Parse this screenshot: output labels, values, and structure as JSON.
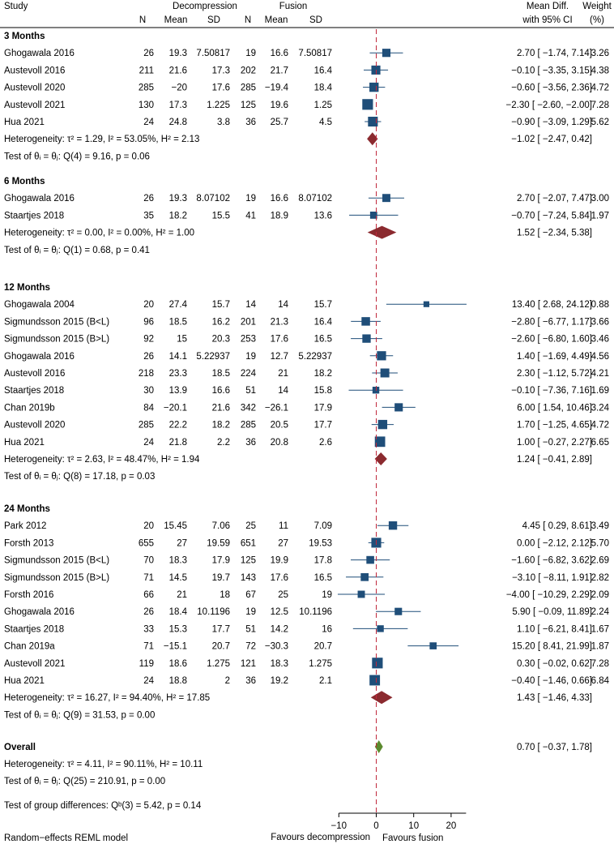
{
  "chart_data": {
    "type": "forest",
    "model_note": "Random−effects REML model",
    "header": {
      "study": "Study",
      "group1": "Decompression",
      "group2": "Fusion",
      "n": "N",
      "mean": "Mean",
      "sd": "SD",
      "effect_line1": "Mean Diff.",
      "effect_line2": "with 95% CI",
      "weight_line1": "Weight",
      "weight_line2": "(%)"
    },
    "x_axis": {
      "range": [
        -10,
        24
      ],
      "ticks": [
        -10,
        0,
        10,
        20
      ],
      "tick_labels": [
        "−10",
        "0",
        "10",
        "20"
      ],
      "reference_line": 0,
      "left_label": "Favours decompression",
      "right_label": "Favours fusion"
    },
    "colors": {
      "study_marker": "#1f4e79",
      "subgroup_diamond": "#8b2a2f",
      "overall_diamond": "#5b8a2e",
      "reference_line": "#c0283c"
    },
    "groups": [
      {
        "label": "3 Months",
        "studies": [
          {
            "name": "Ghogawala 2016",
            "n1": "26",
            "m1": "19.3",
            "sd1": "7.50817",
            "n2": "19",
            "m2": "16.6",
            "sd2": "7.50817",
            "md": 2.7,
            "lo": -1.74,
            "hi": 7.14,
            "weight": 3.26,
            "ci": "2.70 [  −1.74,  7.14]",
            "w": "3.26"
          },
          {
            "name": "Austevoll 2016",
            "n1": "211",
            "m1": "21.6",
            "sd1": "17.3",
            "n2": "202",
            "m2": "21.7",
            "sd2": "16.4",
            "md": -0.1,
            "lo": -3.35,
            "hi": 3.15,
            "weight": 4.38,
            "ci": "−0.10 [  −3.35,  3.15]",
            "w": "4.38"
          },
          {
            "name": "Austevoll 2020",
            "n1": "285",
            "m1": "−20",
            "sd1": "17.6",
            "n2": "285",
            "m2": "−19.4",
            "sd2": "18.4",
            "md": -0.6,
            "lo": -3.56,
            "hi": 2.36,
            "weight": 4.72,
            "ci": "−0.60 [  −3.56,  2.36]",
            "w": "4.72"
          },
          {
            "name": "Austevoll 2021",
            "n1": "130",
            "m1": "17.3",
            "sd1": "1.225",
            "n2": "125",
            "m2": "19.6",
            "sd2": "1.25",
            "md": -2.3,
            "lo": -2.6,
            "hi": -2.0,
            "weight": 7.28,
            "ci": "−2.30 [  −2.60,  −2.00]",
            "w": "7.28"
          },
          {
            "name": "Hua 2021",
            "n1": "24",
            "m1": "24.8",
            "sd1": "3.8",
            "n2": "36",
            "m2": "25.7",
            "sd2": "4.5",
            "md": -0.9,
            "lo": -3.09,
            "hi": 1.29,
            "weight": 5.62,
            "ci": "−0.90 [  −3.09,  1.29]",
            "w": "5.62"
          }
        ],
        "heterogeneity": {
          "text": "Heterogeneity: τ² = 1.29, I² = 53.05%, H² = 2.13",
          "md": -1.02,
          "lo": -2.47,
          "hi": 0.42,
          "ci": "−1.02 [  −2.47,  0.42]"
        },
        "test": "Test of θᵢ = θⱼ: Q(4) = 9.16, p = 0.06"
      },
      {
        "label": "6 Months",
        "studies": [
          {
            "name": "Ghogawala 2016",
            "n1": "26",
            "m1": "19.3",
            "sd1": "8.07102",
            "n2": "19",
            "m2": "16.6",
            "sd2": "8.07102",
            "md": 2.7,
            "lo": -2.07,
            "hi": 7.47,
            "weight": 3.0,
            "ci": "2.70 [  −2.07,  7.47]",
            "w": "3.00"
          },
          {
            "name": "Staartjes 2018",
            "n1": "35",
            "m1": "18.2",
            "sd1": "15.5",
            "n2": "41",
            "m2": "18.9",
            "sd2": "13.6",
            "md": -0.7,
            "lo": -7.24,
            "hi": 5.84,
            "weight": 1.97,
            "ci": "−0.70 [  −7.24,  5.84]",
            "w": "1.97"
          }
        ],
        "heterogeneity": {
          "text": "Heterogeneity: τ² = 0.00, I² = 0.00%, H² = 1.00",
          "md": 1.52,
          "lo": -2.34,
          "hi": 5.38,
          "ci": "1.52 [  −2.34,  5.38]"
        },
        "test": "Test of θᵢ = θⱼ: Q(1) = 0.68, p = 0.41"
      },
      {
        "label": "12 Months",
        "studies": [
          {
            "name": "Ghogawala 2004",
            "n1": "20",
            "m1": "27.4",
            "sd1": "15.7",
            "n2": "14",
            "m2": "14",
            "sd2": "15.7",
            "md": 13.4,
            "lo": 2.68,
            "hi": 24.12,
            "weight": 0.88,
            "ci": "13.40 [  2.68,  24.12]",
            "w": "0.88"
          },
          {
            "name": "Sigmundsson 2015 (B<L)",
            "n1": "96",
            "m1": "18.5",
            "sd1": "16.2",
            "n2": "201",
            "m2": "21.3",
            "sd2": "16.4",
            "md": -2.8,
            "lo": -6.77,
            "hi": 1.17,
            "weight": 3.66,
            "ci": "−2.80 [  −6.77,  1.17]",
            "w": "3.66"
          },
          {
            "name": "Sigmundsson 2015 (B>L)",
            "n1": "92",
            "m1": "15",
            "sd1": "20.3",
            "n2": "253",
            "m2": "17.6",
            "sd2": "16.5",
            "md": -2.6,
            "lo": -6.8,
            "hi": 1.6,
            "weight": 3.46,
            "ci": "−2.60 [  −6.80,  1.60]",
            "w": "3.46"
          },
          {
            "name": "Ghogawala 2016",
            "n1": "26",
            "m1": "14.1",
            "sd1": "5.22937",
            "n2": "19",
            "m2": "12.7",
            "sd2": "5.22937",
            "md": 1.4,
            "lo": -1.69,
            "hi": 4.49,
            "weight": 4.56,
            "ci": "1.40 [  −1.69,  4.49]",
            "w": "4.56"
          },
          {
            "name": "Austevoll 2016",
            "n1": "218",
            "m1": "23.3",
            "sd1": "18.5",
            "n2": "224",
            "m2": "21",
            "sd2": "18.2",
            "md": 2.3,
            "lo": -1.12,
            "hi": 5.72,
            "weight": 4.21,
            "ci": "2.30 [  −1.12,  5.72]",
            "w": "4.21"
          },
          {
            "name": "Staartjes 2018",
            "n1": "30",
            "m1": "13.9",
            "sd1": "16.6",
            "n2": "51",
            "m2": "14",
            "sd2": "15.8",
            "md": -0.1,
            "lo": -7.36,
            "hi": 7.16,
            "weight": 1.69,
            "ci": "−0.10 [  −7.36,  7.16]",
            "w": "1.69"
          },
          {
            "name": "Chan 2019b",
            "n1": "84",
            "m1": "−20.1",
            "sd1": "21.6",
            "n2": "342",
            "m2": "−26.1",
            "sd2": "17.9",
            "md": 6.0,
            "lo": 1.54,
            "hi": 10.46,
            "weight": 3.24,
            "ci": "6.00 [  1.54,  10.46]",
            "w": "3.24"
          },
          {
            "name": "Austevoll 2020",
            "n1": "285",
            "m1": "22.2",
            "sd1": "18.2",
            "n2": "285",
            "m2": "20.5",
            "sd2": "17.7",
            "md": 1.7,
            "lo": -1.25,
            "hi": 4.65,
            "weight": 4.72,
            "ci": "1.70 [  −1.25,  4.65]",
            "w": "4.72"
          },
          {
            "name": "Hua 2021",
            "n1": "24",
            "m1": "21.8",
            "sd1": "2.2",
            "n2": "36",
            "m2": "20.8",
            "sd2": "2.6",
            "md": 1.0,
            "lo": -0.27,
            "hi": 2.27,
            "weight": 6.65,
            "ci": "1.00 [  −0.27,  2.27]",
            "w": "6.65"
          }
        ],
        "heterogeneity": {
          "text": "Heterogeneity: τ² = 2.63, I² = 48.47%, H² = 1.94",
          "md": 1.24,
          "lo": -0.41,
          "hi": 2.89,
          "ci": "1.24 [  −0.41,  2.89]"
        },
        "test": "Test of θᵢ = θⱼ: Q(8) = 17.18, p = 0.03"
      },
      {
        "label": "24 Months",
        "studies": [
          {
            "name": "Park 2012",
            "n1": "20",
            "m1": "15.45",
            "sd1": "7.06",
            "n2": "25",
            "m2": "11",
            "sd2": "7.09",
            "md": 4.45,
            "lo": 0.29,
            "hi": 8.61,
            "weight": 3.49,
            "ci": "4.45 [  0.29,  8.61]",
            "w": "3.49"
          },
          {
            "name": "Forsth 2013",
            "n1": "655",
            "m1": "27",
            "sd1": "19.59",
            "n2": "651",
            "m2": "27",
            "sd2": "19.53",
            "md": 0.0,
            "lo": -2.12,
            "hi": 2.12,
            "weight": 5.7,
            "ci": "0.00 [  −2.12,  2.12]",
            "w": "5.70"
          },
          {
            "name": "Sigmundsson 2015 (B<L)",
            "n1": "70",
            "m1": "18.3",
            "sd1": "17.9",
            "n2": "125",
            "m2": "19.9",
            "sd2": "17.8",
            "md": -1.6,
            "lo": -6.82,
            "hi": 3.62,
            "weight": 2.69,
            "ci": "−1.60 [  −6.82,  3.62]",
            "w": "2.69"
          },
          {
            "name": "Sigmundsson 2015 (B>L)",
            "n1": "71",
            "m1": "14.5",
            "sd1": "19.7",
            "n2": "143",
            "m2": "17.6",
            "sd2": "16.5",
            "md": -3.1,
            "lo": -8.11,
            "hi": 1.91,
            "weight": 2.82,
            "ci": "−3.10 [  −8.11,  1.91]",
            "w": "2.82"
          },
          {
            "name": "Forsth 2016",
            "n1": "66",
            "m1": "21",
            "sd1": "18",
            "n2": "67",
            "m2": "25",
            "sd2": "19",
            "md": -4.0,
            "lo": -10.29,
            "hi": 2.29,
            "weight": 2.09,
            "ci": "−4.00 [ −10.29,  2.29]",
            "w": "2.09"
          },
          {
            "name": "Ghogawala 2016",
            "n1": "26",
            "m1": "18.4",
            "sd1": "10.1196",
            "n2": "19",
            "m2": "12.5",
            "sd2": "10.1196",
            "md": 5.9,
            "lo": -0.09,
            "hi": 11.89,
            "weight": 2.24,
            "ci": "5.90 [  −0.09,  11.89]",
            "w": "2.24"
          },
          {
            "name": "Staartjes 2018",
            "n1": "33",
            "m1": "15.3",
            "sd1": "17.7",
            "n2": "51",
            "m2": "14.2",
            "sd2": "16",
            "md": 1.1,
            "lo": -6.21,
            "hi": 8.41,
            "weight": 1.67,
            "ci": "1.10 [  −6.21,  8.41]",
            "w": "1.67"
          },
          {
            "name": "Chan 2019a",
            "n1": "71",
            "m1": "−15.1",
            "sd1": "20.7",
            "n2": "72",
            "m2": "−30.3",
            "sd2": "20.7",
            "md": 15.2,
            "lo": 8.41,
            "hi": 21.99,
            "weight": 1.87,
            "ci": "15.20 [  8.41,  21.99]",
            "w": "1.87"
          },
          {
            "name": "Austevoll 2021",
            "n1": "119",
            "m1": "18.6",
            "sd1": "1.275",
            "n2": "121",
            "m2": "18.3",
            "sd2": "1.275",
            "md": 0.3,
            "lo": -0.02,
            "hi": 0.62,
            "weight": 7.28,
            "ci": "0.30 [  −0.02,  0.62]",
            "w": "7.28"
          },
          {
            "name": "Hua 2021",
            "n1": "24",
            "m1": "18.8",
            "sd1": "2",
            "n2": "36",
            "m2": "19.2",
            "sd2": "2.1",
            "md": -0.4,
            "lo": -1.46,
            "hi": 0.66,
            "weight": 6.84,
            "ci": "−0.40 [  −1.46,  0.66]",
            "w": "6.84"
          }
        ],
        "heterogeneity": {
          "text": "Heterogeneity: τ² = 16.27, I² = 94.40%, H² = 17.85",
          "md": 1.43,
          "lo": -1.46,
          "hi": 4.33,
          "ci": "1.43 [  −1.46,  4.33]"
        },
        "test": "Test of θᵢ = θⱼ: Q(9) = 31.53, p = 0.00"
      }
    ],
    "overall": {
      "label": "Overall",
      "md": 0.7,
      "lo": -0.37,
      "hi": 1.78,
      "ci": "0.70 [  −0.37,  1.78]",
      "heterogeneity": "Heterogeneity: τ² = 4.11, I² = 90.11%, H² = 10.11",
      "test": "Test of θᵢ = θⱼ: Q(25) = 210.91, p = 0.00",
      "group_test": "Test of group differences: Qᵇ(3) = 5.42, p = 0.14"
    }
  }
}
